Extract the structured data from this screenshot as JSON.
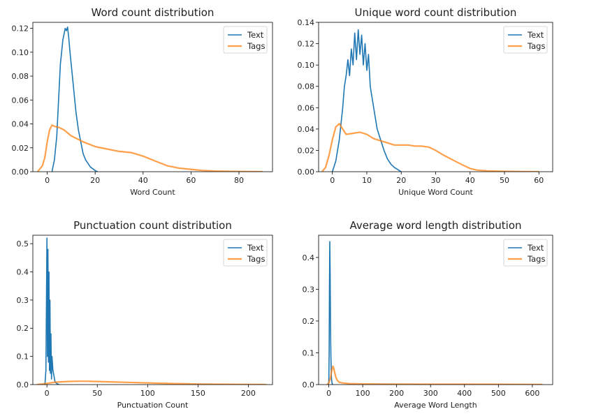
{
  "chart_data": [
    {
      "type": "line",
      "title": "Word count distribution",
      "xlabel": "Word Count",
      "ylabel": "",
      "xlim": [
        -6,
        94
      ],
      "ylim": [
        0,
        0.125
      ],
      "xticks": [
        0,
        20,
        40,
        60,
        80
      ],
      "yticks": [
        0.0,
        0.02,
        0.04,
        0.06,
        0.08,
        0.1,
        0.12
      ],
      "ytick_decimals": 2,
      "legend": "top-right",
      "series": [
        {
          "name": "Text",
          "color": "#1f77b4",
          "x": [
            2,
            3,
            4,
            5,
            5.5,
            6,
            6.5,
            7,
            7.5,
            8,
            8.5,
            9,
            9.5,
            10,
            11,
            12,
            13,
            14,
            15,
            16,
            18,
            20,
            21
          ],
          "y": [
            0.0,
            0.01,
            0.03,
            0.07,
            0.09,
            0.1,
            0.11,
            0.115,
            0.12,
            0.118,
            0.121,
            0.112,
            0.1,
            0.09,
            0.07,
            0.05,
            0.035,
            0.025,
            0.015,
            0.01,
            0.004,
            0.001,
            0.0
          ]
        },
        {
          "name": "Tags",
          "color": "#ff7f0e",
          "x": [
            -4,
            -2,
            -1,
            0,
            1,
            2,
            3,
            5,
            7,
            10,
            15,
            20,
            25,
            30,
            35,
            40,
            45,
            50,
            55,
            60,
            65,
            70,
            80,
            90
          ],
          "y": [
            0.0,
            0.005,
            0.012,
            0.025,
            0.035,
            0.039,
            0.038,
            0.037,
            0.035,
            0.03,
            0.025,
            0.021,
            0.019,
            0.017,
            0.016,
            0.013,
            0.009,
            0.005,
            0.003,
            0.002,
            0.001,
            0.0005,
            0.0002,
            0.0
          ]
        }
      ]
    },
    {
      "type": "line",
      "title": "Unique word count distribution",
      "xlabel": "Unique Word Count",
      "ylabel": "",
      "xlim": [
        -4,
        64
      ],
      "ylim": [
        0,
        0.14
      ],
      "xticks": [
        0,
        10,
        20,
        30,
        40,
        50,
        60
      ],
      "yticks": [
        0.0,
        0.02,
        0.04,
        0.06,
        0.08,
        0.1,
        0.12,
        0.14
      ],
      "ytick_decimals": 2,
      "legend": "top-right",
      "series": [
        {
          "name": "Text",
          "color": "#1f77b4",
          "x": [
            0,
            1,
            2,
            3,
            3.5,
            4,
            4.5,
            5,
            5.5,
            6,
            6.5,
            7,
            7.5,
            8,
            8.5,
            9,
            9.5,
            10,
            10.5,
            11,
            12,
            13,
            14,
            15,
            16,
            17,
            18,
            19,
            20
          ],
          "y": [
            0.0,
            0.01,
            0.03,
            0.06,
            0.08,
            0.09,
            0.105,
            0.09,
            0.115,
            0.1,
            0.13,
            0.105,
            0.133,
            0.11,
            0.128,
            0.1,
            0.12,
            0.095,
            0.11,
            0.08,
            0.06,
            0.04,
            0.03,
            0.02,
            0.012,
            0.007,
            0.004,
            0.002,
            0.0
          ]
        },
        {
          "name": "Tags",
          "color": "#ff7f0e",
          "x": [
            -3,
            -2,
            -1,
            0,
            1,
            2,
            3,
            4,
            6,
            8,
            10,
            12,
            14,
            16,
            18,
            20,
            22,
            24,
            26,
            28,
            30,
            32,
            35,
            38,
            40,
            42,
            45,
            50,
            55,
            60
          ],
          "y": [
            0.0,
            0.004,
            0.015,
            0.03,
            0.042,
            0.045,
            0.04,
            0.035,
            0.036,
            0.037,
            0.035,
            0.031,
            0.029,
            0.027,
            0.025,
            0.025,
            0.025,
            0.024,
            0.024,
            0.023,
            0.02,
            0.016,
            0.011,
            0.006,
            0.003,
            0.0015,
            0.0008,
            0.0003,
            0.0001,
            0.0
          ]
        }
      ]
    },
    {
      "type": "line",
      "title": "Punctuation count distribution",
      "xlabel": "Punctuation Count",
      "ylabel": "",
      "xlim": [
        -14,
        224
      ],
      "ylim": [
        0,
        0.53
      ],
      "xticks": [
        0,
        50,
        100,
        150,
        200
      ],
      "yticks": [
        0.0,
        0.1,
        0.2,
        0.3,
        0.4,
        0.5
      ],
      "ytick_decimals": 1,
      "legend": "top-right",
      "series": [
        {
          "name": "Text",
          "color": "#1f77b4",
          "x": [
            -2,
            -1,
            -0.5,
            0,
            0.5,
            1,
            1.5,
            2,
            2.5,
            3,
            3.5,
            4,
            4.5,
            5,
            6,
            7,
            8,
            10,
            12
          ],
          "y": [
            0.0,
            0.05,
            0.3,
            0.52,
            0.1,
            0.48,
            0.08,
            0.4,
            0.05,
            0.3,
            0.04,
            0.18,
            0.02,
            0.1,
            0.05,
            0.03,
            0.01,
            0.003,
            0.0
          ]
        },
        {
          "name": "Tags",
          "color": "#ff7f0e",
          "x": [
            -10,
            -5,
            0,
            5,
            10,
            20,
            30,
            40,
            50,
            60,
            80,
            100,
            120,
            150,
            180,
            200,
            218
          ],
          "y": [
            0.0,
            0.002,
            0.004,
            0.007,
            0.009,
            0.011,
            0.012,
            0.012,
            0.011,
            0.01,
            0.008,
            0.006,
            0.004,
            0.002,
            0.001,
            0.0005,
            0.0
          ]
        }
      ]
    },
    {
      "type": "line",
      "title": "Average word length distribution",
      "xlabel": "Average Word Length",
      "ylabel": "",
      "xlim": [
        -30,
        660
      ],
      "ylim": [
        0,
        0.47
      ],
      "xticks": [
        0,
        100,
        200,
        300,
        400,
        500,
        600
      ],
      "yticks": [
        0.0,
        0.1,
        0.2,
        0.3,
        0.4
      ],
      "ytick_decimals": 1,
      "legend": "top-right",
      "series": [
        {
          "name": "Text",
          "color": "#1f77b4",
          "x": [
            -2,
            0,
            1,
            2,
            3,
            4,
            5,
            6,
            7,
            8,
            9,
            10,
            12
          ],
          "y": [
            0.0,
            0.01,
            0.1,
            0.3,
            0.45,
            0.35,
            0.2,
            0.1,
            0.05,
            0.02,
            0.01,
            0.003,
            0.0
          ]
        },
        {
          "name": "Tags",
          "color": "#ff7f0e",
          "x": [
            -5,
            0,
            5,
            8,
            12,
            15,
            18,
            22,
            26,
            30,
            40,
            60,
            100,
            200,
            300,
            400,
            500,
            600,
            630
          ],
          "y": [
            0.0,
            0.005,
            0.02,
            0.04,
            0.058,
            0.05,
            0.035,
            0.02,
            0.012,
            0.008,
            0.005,
            0.003,
            0.002,
            0.0015,
            0.001,
            0.001,
            0.0008,
            0.0005,
            0.0
          ]
        }
      ]
    }
  ]
}
